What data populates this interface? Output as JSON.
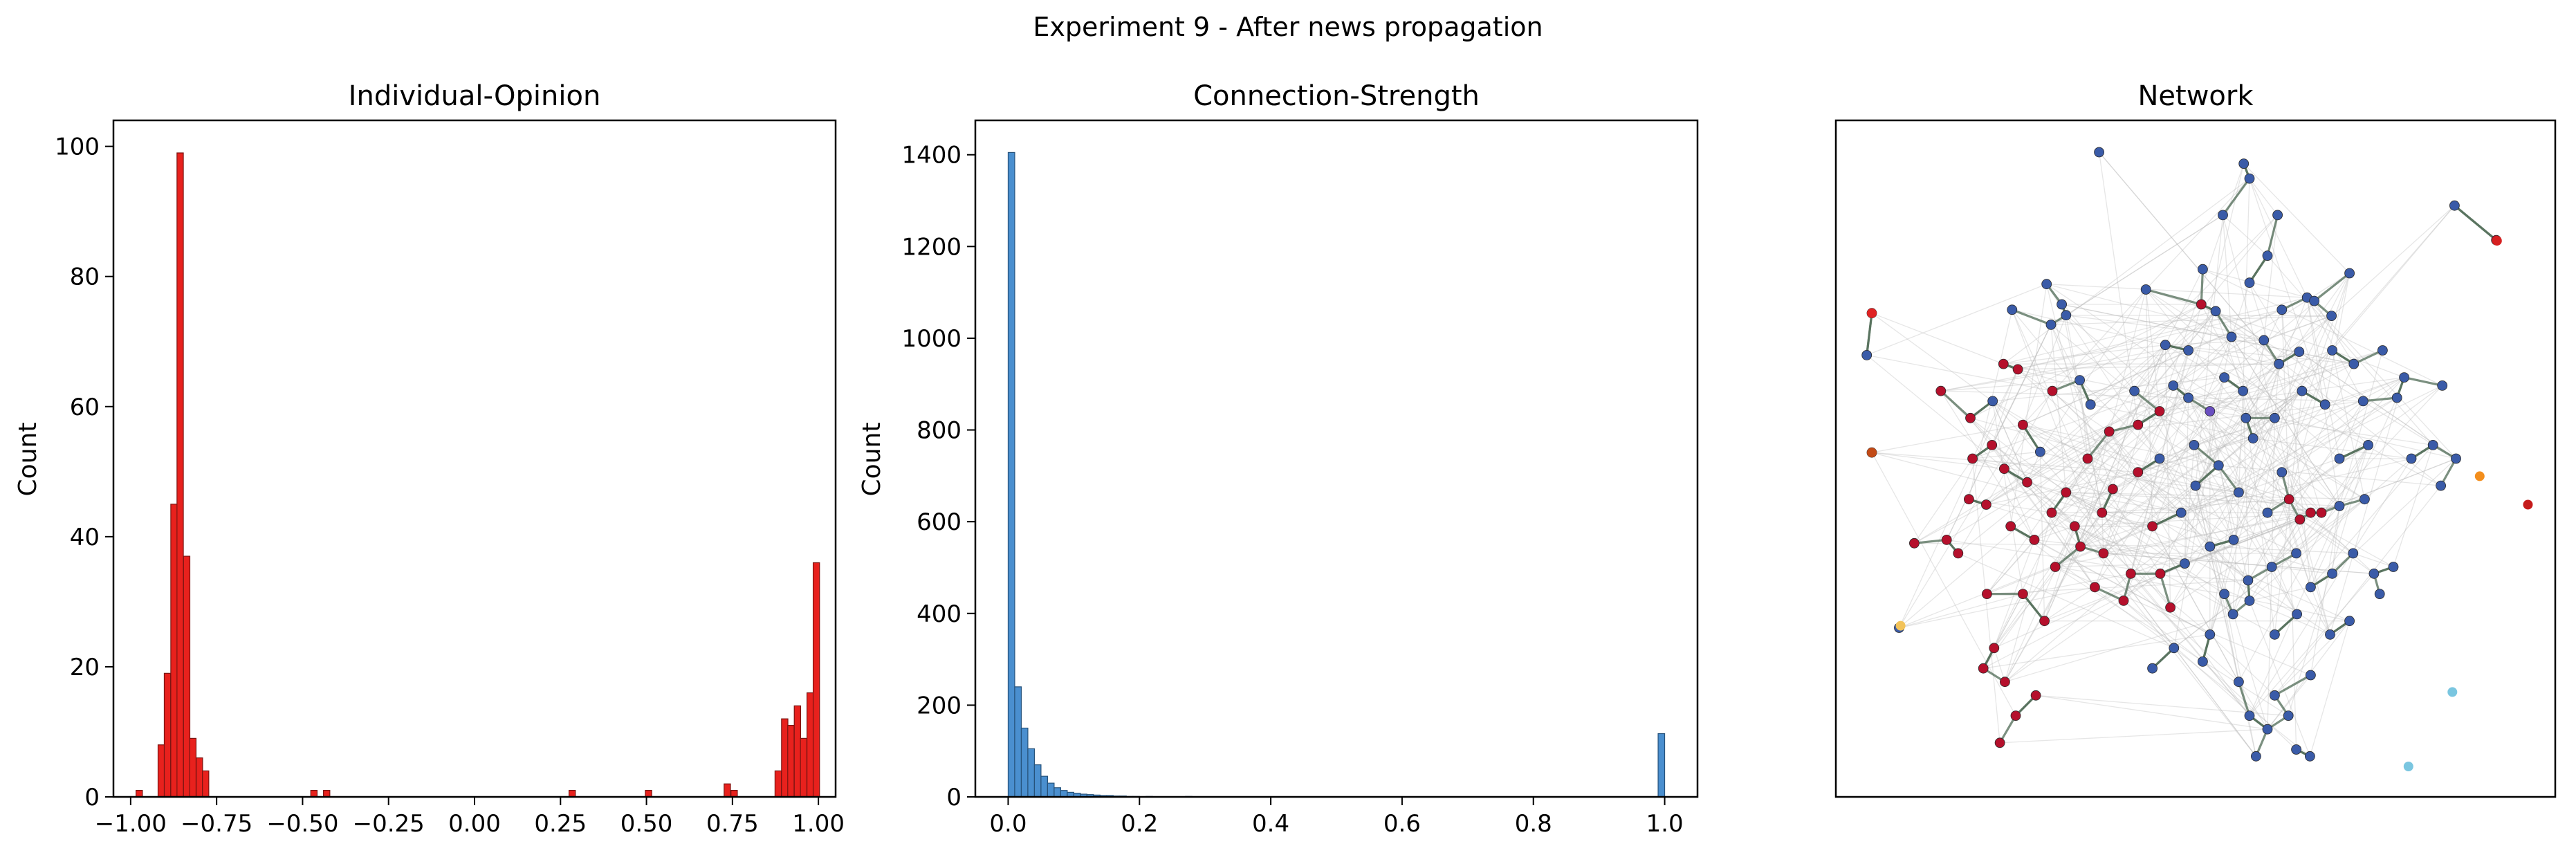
{
  "figure": {
    "suptitle": "Experiment 9 - After news propagation"
  },
  "chart_data": [
    {
      "type": "bar",
      "kind": "histogram",
      "title": "Individual-Opinion",
      "xlabel": "",
      "ylabel": "Count",
      "xlim": [
        -1.05,
        1.05
      ],
      "ylim": [
        0,
        104
      ],
      "xticks": [
        -1.0,
        -0.75,
        -0.5,
        -0.25,
        0.0,
        0.25,
        0.5,
        0.75,
        1.0
      ],
      "xtick_labels": [
        "−1.00",
        "−0.75",
        "−0.50",
        "−0.25",
        "0.00",
        "0.25",
        "0.50",
        "0.75",
        "1.00"
      ],
      "yticks": [
        0,
        20,
        40,
        60,
        80,
        100
      ],
      "color": "#e8211d",
      "edge_color": "#7a1512",
      "bin_width": 0.0185,
      "bars": [
        {
          "x": -0.975,
          "count": 1
        },
        {
          "x": -0.911,
          "count": 8
        },
        {
          "x": -0.893,
          "count": 19
        },
        {
          "x": -0.874,
          "count": 45
        },
        {
          "x": -0.856,
          "count": 99
        },
        {
          "x": -0.837,
          "count": 37
        },
        {
          "x": -0.819,
          "count": 9
        },
        {
          "x": -0.8,
          "count": 6
        },
        {
          "x": -0.782,
          "count": 4
        },
        {
          "x": -0.467,
          "count": 1
        },
        {
          "x": -0.43,
          "count": 1
        },
        {
          "x": 0.284,
          "count": 1
        },
        {
          "x": 0.506,
          "count": 1
        },
        {
          "x": 0.735,
          "count": 2
        },
        {
          "x": 0.755,
          "count": 1
        },
        {
          "x": 0.883,
          "count": 4
        },
        {
          "x": 0.902,
          "count": 12
        },
        {
          "x": 0.92,
          "count": 11
        },
        {
          "x": 0.939,
          "count": 14
        },
        {
          "x": 0.957,
          "count": 9
        },
        {
          "x": 0.976,
          "count": 16
        },
        {
          "x": 0.994,
          "count": 36
        }
      ]
    },
    {
      "type": "bar",
      "kind": "histogram",
      "title": "Connection-Strength",
      "xlabel": "",
      "ylabel": "Count",
      "xlim": [
        -0.05,
        1.05
      ],
      "ylim": [
        0,
        1475
      ],
      "xticks": [
        0.0,
        0.2,
        0.4,
        0.6,
        0.8,
        1.0
      ],
      "xtick_labels": [
        "0.0",
        "0.2",
        "0.4",
        "0.6",
        "0.8",
        "1.0"
      ],
      "yticks": [
        0,
        200,
        400,
        600,
        800,
        1000,
        1200,
        1400
      ],
      "color": "#4a8fcf",
      "edge_color": "#26527a",
      "bin_width": 0.01,
      "bars": [
        {
          "x": 0.005,
          "count": 1405
        },
        {
          "x": 0.015,
          "count": 240
        },
        {
          "x": 0.025,
          "count": 150
        },
        {
          "x": 0.035,
          "count": 105
        },
        {
          "x": 0.045,
          "count": 70
        },
        {
          "x": 0.055,
          "count": 45
        },
        {
          "x": 0.065,
          "count": 30
        },
        {
          "x": 0.075,
          "count": 20
        },
        {
          "x": 0.085,
          "count": 14
        },
        {
          "x": 0.095,
          "count": 10
        },
        {
          "x": 0.105,
          "count": 8
        },
        {
          "x": 0.115,
          "count": 6
        },
        {
          "x": 0.125,
          "count": 5
        },
        {
          "x": 0.135,
          "count": 4
        },
        {
          "x": 0.145,
          "count": 3
        },
        {
          "x": 0.155,
          "count": 3
        },
        {
          "x": 0.165,
          "count": 2
        },
        {
          "x": 0.175,
          "count": 2
        },
        {
          "x": 0.185,
          "count": 1
        },
        {
          "x": 0.195,
          "count": 1
        },
        {
          "x": 0.215,
          "count": 1
        },
        {
          "x": 0.275,
          "count": 1
        },
        {
          "x": 0.995,
          "count": 138
        }
      ]
    },
    {
      "type": "scatter",
      "kind": "network",
      "title": "Network",
      "axes_visible": false,
      "node_colors": {
        "neg": "#b5102c",
        "pos": "#3a5ba8",
        "mid": "#6a4fc0"
      },
      "edge_color": "#b8b8b8",
      "strong_edge_color": "#4f6b55",
      "nodes": [
        {
          "x": 0.366,
          "y": 0.953,
          "c": "pos"
        },
        {
          "x": 0.567,
          "y": 0.936,
          "c": "pos"
        },
        {
          "x": 0.575,
          "y": 0.914,
          "c": "pos"
        },
        {
          "x": 0.538,
          "y": 0.86,
          "c": "pos"
        },
        {
          "x": 0.614,
          "y": 0.86,
          "c": "pos"
        },
        {
          "x": 0.86,
          "y": 0.874,
          "c": "pos"
        },
        {
          "x": 0.918,
          "y": 0.823,
          "c": "neg"
        },
        {
          "x": 0.05,
          "y": 0.715,
          "c": "neg"
        },
        {
          "x": 0.043,
          "y": 0.653,
          "c": "pos"
        },
        {
          "x": 0.05,
          "y": 0.509,
          "c": "neg"
        },
        {
          "x": 0.293,
          "y": 0.758,
          "c": "pos"
        },
        {
          "x": 0.314,
          "y": 0.728,
          "c": "pos"
        },
        {
          "x": 0.32,
          "y": 0.712,
          "c": "pos"
        },
        {
          "x": 0.299,
          "y": 0.698,
          "c": "pos"
        },
        {
          "x": 0.245,
          "y": 0.72,
          "c": "pos"
        },
        {
          "x": 0.431,
          "y": 0.75,
          "c": "pos"
        },
        {
          "x": 0.508,
          "y": 0.728,
          "c": "neg"
        },
        {
          "x": 0.528,
          "y": 0.718,
          "c": "pos"
        },
        {
          "x": 0.655,
          "y": 0.738,
          "c": "pos"
        },
        {
          "x": 0.665,
          "y": 0.733,
          "c": "pos"
        },
        {
          "x": 0.714,
          "y": 0.774,
          "c": "pos"
        },
        {
          "x": 0.689,
          "y": 0.711,
          "c": "pos"
        },
        {
          "x": 0.458,
          "y": 0.668,
          "c": "pos"
        },
        {
          "x": 0.55,
          "y": 0.68,
          "c": "pos"
        },
        {
          "x": 0.595,
          "y": 0.675,
          "c": "pos"
        },
        {
          "x": 0.616,
          "y": 0.64,
          "c": "pos"
        },
        {
          "x": 0.644,
          "y": 0.658,
          "c": "pos"
        },
        {
          "x": 0.233,
          "y": 0.64,
          "c": "neg"
        },
        {
          "x": 0.253,
          "y": 0.632,
          "c": "neg"
        },
        {
          "x": 0.218,
          "y": 0.585,
          "c": "pos"
        },
        {
          "x": 0.301,
          "y": 0.6,
          "c": "neg"
        },
        {
          "x": 0.339,
          "y": 0.616,
          "c": "pos"
        },
        {
          "x": 0.354,
          "y": 0.58,
          "c": "pos"
        },
        {
          "x": 0.415,
          "y": 0.6,
          "c": "pos"
        },
        {
          "x": 0.469,
          "y": 0.608,
          "c": "pos"
        },
        {
          "x": 0.49,
          "y": 0.59,
          "c": "pos"
        },
        {
          "x": 0.52,
          "y": 0.57,
          "c": "mid"
        },
        {
          "x": 0.566,
          "y": 0.6,
          "c": "pos"
        },
        {
          "x": 0.648,
          "y": 0.6,
          "c": "pos"
        },
        {
          "x": 0.68,
          "y": 0.58,
          "c": "pos"
        },
        {
          "x": 0.733,
          "y": 0.585,
          "c": "pos"
        },
        {
          "x": 0.79,
          "y": 0.62,
          "c": "pos"
        },
        {
          "x": 0.843,
          "y": 0.608,
          "c": "pos"
        },
        {
          "x": 0.78,
          "y": 0.59,
          "c": "pos"
        },
        {
          "x": 0.146,
          "y": 0.6,
          "c": "neg"
        },
        {
          "x": 0.187,
          "y": 0.56,
          "c": "neg"
        },
        {
          "x": 0.217,
          "y": 0.52,
          "c": "neg"
        },
        {
          "x": 0.234,
          "y": 0.485,
          "c": "neg"
        },
        {
          "x": 0.185,
          "y": 0.44,
          "c": "neg"
        },
        {
          "x": 0.209,
          "y": 0.432,
          "c": "neg"
        },
        {
          "x": 0.266,
          "y": 0.465,
          "c": "neg"
        },
        {
          "x": 0.284,
          "y": 0.51,
          "c": "pos"
        },
        {
          "x": 0.32,
          "y": 0.45,
          "c": "neg"
        },
        {
          "x": 0.385,
          "y": 0.455,
          "c": "neg"
        },
        {
          "x": 0.42,
          "y": 0.48,
          "c": "neg"
        },
        {
          "x": 0.45,
          "y": 0.5,
          "c": "pos"
        },
        {
          "x": 0.498,
          "y": 0.52,
          "c": "pos"
        },
        {
          "x": 0.532,
          "y": 0.49,
          "c": "pos"
        },
        {
          "x": 0.56,
          "y": 0.45,
          "c": "pos"
        },
        {
          "x": 0.58,
          "y": 0.53,
          "c": "pos"
        },
        {
          "x": 0.62,
          "y": 0.48,
          "c": "pos"
        },
        {
          "x": 0.66,
          "y": 0.42,
          "c": "neg"
        },
        {
          "x": 0.675,
          "y": 0.42,
          "c": "neg"
        },
        {
          "x": 0.7,
          "y": 0.43,
          "c": "pos"
        },
        {
          "x": 0.735,
          "y": 0.44,
          "c": "pos"
        },
        {
          "x": 0.8,
          "y": 0.5,
          "c": "pos"
        },
        {
          "x": 0.841,
          "y": 0.46,
          "c": "pos"
        },
        {
          "x": 0.862,
          "y": 0.5,
          "c": "pos"
        },
        {
          "x": 0.154,
          "y": 0.38,
          "c": "neg"
        },
        {
          "x": 0.109,
          "y": 0.375,
          "c": "neg"
        },
        {
          "x": 0.243,
          "y": 0.4,
          "c": "neg"
        },
        {
          "x": 0.276,
          "y": 0.38,
          "c": "neg"
        },
        {
          "x": 0.305,
          "y": 0.34,
          "c": "neg"
        },
        {
          "x": 0.34,
          "y": 0.37,
          "c": "neg"
        },
        {
          "x": 0.372,
          "y": 0.36,
          "c": "neg"
        },
        {
          "x": 0.41,
          "y": 0.33,
          "c": "neg"
        },
        {
          "x": 0.451,
          "y": 0.33,
          "c": "neg"
        },
        {
          "x": 0.485,
          "y": 0.345,
          "c": "pos"
        },
        {
          "x": 0.52,
          "y": 0.37,
          "c": "pos"
        },
        {
          "x": 0.553,
          "y": 0.38,
          "c": "pos"
        },
        {
          "x": 0.573,
          "y": 0.32,
          "c": "pos"
        },
        {
          "x": 0.606,
          "y": 0.34,
          "c": "pos"
        },
        {
          "x": 0.64,
          "y": 0.36,
          "c": "pos"
        },
        {
          "x": 0.69,
          "y": 0.33,
          "c": "pos"
        },
        {
          "x": 0.719,
          "y": 0.36,
          "c": "pos"
        },
        {
          "x": 0.748,
          "y": 0.33,
          "c": "pos"
        },
        {
          "x": 0.775,
          "y": 0.34,
          "c": "pos"
        },
        {
          "x": 0.26,
          "y": 0.3,
          "c": "neg"
        },
        {
          "x": 0.29,
          "y": 0.26,
          "c": "neg"
        },
        {
          "x": 0.22,
          "y": 0.22,
          "c": "neg"
        },
        {
          "x": 0.4,
          "y": 0.29,
          "c": "neg"
        },
        {
          "x": 0.465,
          "y": 0.28,
          "c": "neg"
        },
        {
          "x": 0.552,
          "y": 0.27,
          "c": "pos"
        },
        {
          "x": 0.575,
          "y": 0.29,
          "c": "pos"
        },
        {
          "x": 0.61,
          "y": 0.24,
          "c": "pos"
        },
        {
          "x": 0.641,
          "y": 0.27,
          "c": "pos"
        },
        {
          "x": 0.687,
          "y": 0.24,
          "c": "pos"
        },
        {
          "x": 0.714,
          "y": 0.26,
          "c": "pos"
        },
        {
          "x": 0.756,
          "y": 0.3,
          "c": "pos"
        },
        {
          "x": 0.205,
          "y": 0.19,
          "c": "neg"
        },
        {
          "x": 0.235,
          "y": 0.17,
          "c": "neg"
        },
        {
          "x": 0.25,
          "y": 0.12,
          "c": "neg"
        },
        {
          "x": 0.228,
          "y": 0.08,
          "c": "neg"
        },
        {
          "x": 0.278,
          "y": 0.15,
          "c": "neg"
        },
        {
          "x": 0.51,
          "y": 0.2,
          "c": "pos"
        },
        {
          "x": 0.56,
          "y": 0.17,
          "c": "pos"
        },
        {
          "x": 0.575,
          "y": 0.12,
          "c": "pos"
        },
        {
          "x": 0.6,
          "y": 0.1,
          "c": "pos"
        },
        {
          "x": 0.61,
          "y": 0.15,
          "c": "pos"
        },
        {
          "x": 0.629,
          "y": 0.12,
          "c": "pos"
        },
        {
          "x": 0.66,
          "y": 0.18,
          "c": "pos"
        },
        {
          "x": 0.584,
          "y": 0.06,
          "c": "pos"
        },
        {
          "x": 0.64,
          "y": 0.07,
          "c": "pos"
        },
        {
          "x": 0.659,
          "y": 0.06,
          "c": "pos"
        },
        {
          "x": 0.088,
          "y": 0.25,
          "c": "pos"
        },
        {
          "x": 0.35,
          "y": 0.5,
          "c": "neg"
        },
        {
          "x": 0.37,
          "y": 0.42,
          "c": "neg"
        },
        {
          "x": 0.332,
          "y": 0.4,
          "c": "neg"
        },
        {
          "x": 0.44,
          "y": 0.4,
          "c": "neg"
        },
        {
          "x": 0.48,
          "y": 0.42,
          "c": "pos"
        },
        {
          "x": 0.5,
          "y": 0.46,
          "c": "pos"
        },
        {
          "x": 0.6,
          "y": 0.42,
          "c": "pos"
        },
        {
          "x": 0.63,
          "y": 0.44,
          "c": "neg"
        },
        {
          "x": 0.645,
          "y": 0.41,
          "c": "neg"
        },
        {
          "x": 0.54,
          "y": 0.62,
          "c": "pos"
        },
        {
          "x": 0.57,
          "y": 0.56,
          "c": "pos"
        },
        {
          "x": 0.61,
          "y": 0.56,
          "c": "pos"
        },
        {
          "x": 0.49,
          "y": 0.66,
          "c": "pos"
        },
        {
          "x": 0.51,
          "y": 0.78,
          "c": "pos"
        },
        {
          "x": 0.6,
          "y": 0.8,
          "c": "pos"
        },
        {
          "x": 0.62,
          "y": 0.72,
          "c": "pos"
        },
        {
          "x": 0.575,
          "y": 0.76,
          "c": "pos"
        },
        {
          "x": 0.69,
          "y": 0.66,
          "c": "pos"
        },
        {
          "x": 0.72,
          "y": 0.64,
          "c": "pos"
        },
        {
          "x": 0.76,
          "y": 0.66,
          "c": "pos"
        },
        {
          "x": 0.83,
          "y": 0.52,
          "c": "pos"
        },
        {
          "x": 0.7,
          "y": 0.5,
          "c": "pos"
        },
        {
          "x": 0.74,
          "y": 0.52,
          "c": "pos"
        },
        {
          "x": 0.42,
          "y": 0.55,
          "c": "neg"
        },
        {
          "x": 0.3,
          "y": 0.42,
          "c": "neg"
        },
        {
          "x": 0.26,
          "y": 0.55,
          "c": "neg"
        },
        {
          "x": 0.19,
          "y": 0.5,
          "c": "neg"
        },
        {
          "x": 0.17,
          "y": 0.36,
          "c": "neg"
        },
        {
          "x": 0.21,
          "y": 0.3,
          "c": "neg"
        },
        {
          "x": 0.36,
          "y": 0.31,
          "c": "neg"
        },
        {
          "x": 0.38,
          "y": 0.54,
          "c": "neg"
        },
        {
          "x": 0.45,
          "y": 0.57,
          "c": "neg"
        },
        {
          "x": 0.66,
          "y": 0.31,
          "c": "pos"
        },
        {
          "x": 0.54,
          "y": 0.3,
          "c": "pos"
        },
        {
          "x": 0.52,
          "y": 0.24,
          "c": "pos"
        },
        {
          "x": 0.47,
          "y": 0.22,
          "c": "pos"
        },
        {
          "x": 0.44,
          "y": 0.19,
          "c": "pos"
        }
      ],
      "isolates": [
        {
          "x": 0.05,
          "y": 0.715,
          "color": "#e02222"
        },
        {
          "x": 0.05,
          "y": 0.509,
          "color": "#c24a16"
        },
        {
          "x": 0.919,
          "y": 0.822,
          "color": "#d62020"
        },
        {
          "x": 0.895,
          "y": 0.474,
          "color": "#f38e1d"
        },
        {
          "x": 0.962,
          "y": 0.432,
          "color": "#c51b1b"
        },
        {
          "x": 0.09,
          "y": 0.253,
          "color": "#f2c35a"
        },
        {
          "x": 0.857,
          "y": 0.155,
          "color": "#7ac6e0"
        },
        {
          "x": 0.796,
          "y": 0.045,
          "color": "#7ac6e0"
        }
      ]
    }
  ]
}
